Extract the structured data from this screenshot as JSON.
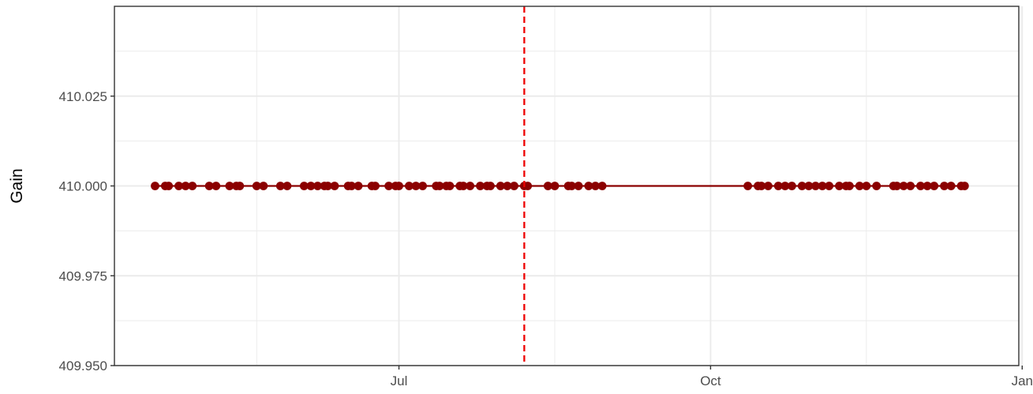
{
  "chart_data": {
    "type": "line",
    "title": "",
    "xlabel": "",
    "ylabel": "Gain",
    "xlim": [
      "2023-04-08",
      "2023-12-31"
    ],
    "ylim": [
      409.95,
      410.05
    ],
    "x_ticks": [
      {
        "label": "Jul",
        "date": "2023-07-01"
      },
      {
        "label": "Oct",
        "date": "2023-10-01"
      },
      {
        "label": "Jan",
        "date": "2024-01-01"
      }
    ],
    "y_ticks": [
      {
        "label": "409.950",
        "value": 409.95
      },
      {
        "label": "409.975",
        "value": 409.975
      },
      {
        "label": "410.000",
        "value": 410.0
      },
      {
        "label": "410.025",
        "value": 410.025
      }
    ],
    "grid": true,
    "legend": "none",
    "colors": {
      "series": "#8b0000",
      "vline": "#ee0000",
      "grid": "#ebebeb",
      "border": "#333333"
    },
    "vline": {
      "date": "2023-08-07",
      "style": "dashed"
    },
    "series": [
      {
        "x": [
          "2023-04-20",
          "2023-04-23",
          "2023-04-24",
          "2023-04-27",
          "2023-04-29",
          "2023-05-01",
          "2023-05-06",
          "2023-05-08",
          "2023-05-12",
          "2023-05-14",
          "2023-05-15",
          "2023-05-20",
          "2023-05-22",
          "2023-05-27",
          "2023-05-29",
          "2023-06-03",
          "2023-06-05",
          "2023-06-07",
          "2023-06-09",
          "2023-06-10",
          "2023-06-12",
          "2023-06-16",
          "2023-06-17",
          "2023-06-19",
          "2023-06-23",
          "2023-06-24",
          "2023-06-28",
          "2023-06-30",
          "2023-07-01",
          "2023-07-04",
          "2023-07-06",
          "2023-07-08",
          "2023-07-12",
          "2023-07-13",
          "2023-07-15",
          "2023-07-16",
          "2023-07-19",
          "2023-07-20",
          "2023-07-22",
          "2023-07-25",
          "2023-07-27",
          "2023-07-28",
          "2023-07-31",
          "2023-08-02",
          "2023-08-04",
          "2023-08-07",
          "2023-08-08",
          "2023-08-14",
          "2023-08-16",
          "2023-08-20",
          "2023-08-21",
          "2023-08-23",
          "2023-08-26",
          "2023-08-28",
          "2023-08-30",
          "2023-10-12",
          "2023-10-15",
          "2023-10-16",
          "2023-10-18",
          "2023-10-21",
          "2023-10-23",
          "2023-10-25",
          "2023-10-28",
          "2023-10-30",
          "2023-11-01",
          "2023-11-03",
          "2023-11-05",
          "2023-11-08",
          "2023-11-10",
          "2023-11-11",
          "2023-11-14",
          "2023-11-16",
          "2023-11-19",
          "2023-11-24",
          "2023-11-25",
          "2023-11-27",
          "2023-11-29",
          "2023-12-02",
          "2023-12-04",
          "2023-12-06",
          "2023-12-09",
          "2023-12-11",
          "2023-12-14",
          "2023-12-15"
        ],
        "y": [
          410.0,
          410.0,
          410.0,
          410.0,
          410.0,
          410.0,
          410.0,
          410.0,
          410.0,
          410.0,
          410.0,
          410.0,
          410.0,
          410.0,
          410.0,
          410.0,
          410.0,
          410.0,
          410.0,
          410.0,
          410.0,
          410.0,
          410.0,
          410.0,
          410.0,
          410.0,
          410.0,
          410.0,
          410.0,
          410.0,
          410.0,
          410.0,
          410.0,
          410.0,
          410.0,
          410.0,
          410.0,
          410.0,
          410.0,
          410.0,
          410.0,
          410.0,
          410.0,
          410.0,
          410.0,
          410.0,
          410.0,
          410.0,
          410.0,
          410.0,
          410.0,
          410.0,
          410.0,
          410.0,
          410.0,
          410.0,
          410.0,
          410.0,
          410.0,
          410.0,
          410.0,
          410.0,
          410.0,
          410.0,
          410.0,
          410.0,
          410.0,
          410.0,
          410.0,
          410.0,
          410.0,
          410.0,
          410.0,
          410.0,
          410.0,
          410.0,
          410.0,
          410.0,
          410.0,
          410.0,
          410.0,
          410.0,
          410.0,
          410.0
        ]
      }
    ]
  }
}
